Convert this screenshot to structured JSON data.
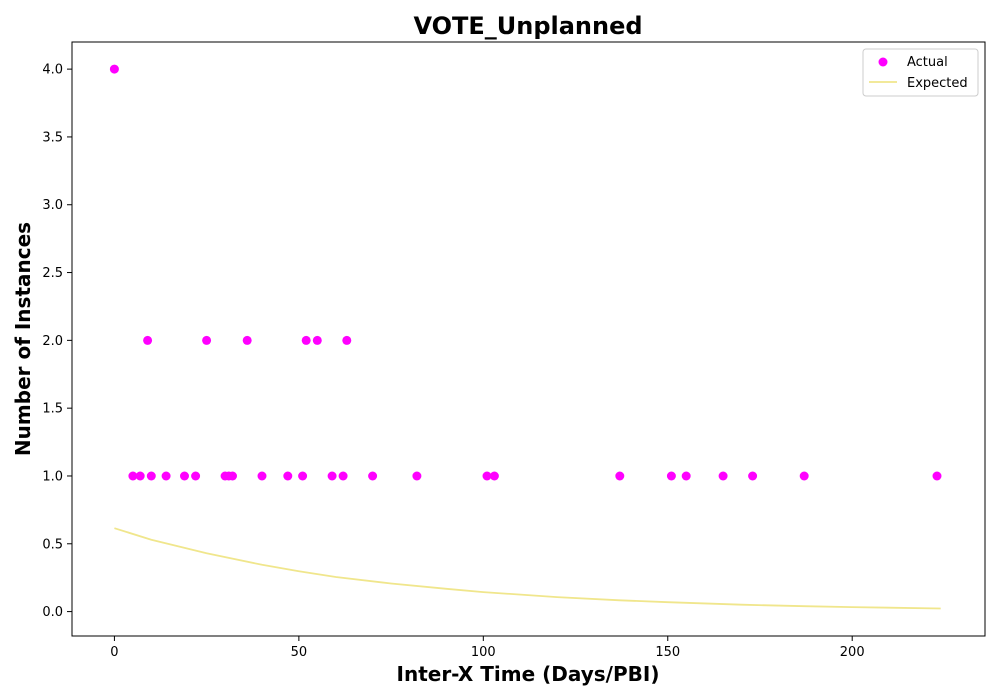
{
  "chart_data": {
    "type": "scatter",
    "title": "VOTE_Unplanned",
    "xlabel": "Inter-X Time (Days/PBI)",
    "ylabel": "Number of Instances",
    "xlim": [
      -11.5,
      236
    ],
    "ylim": [
      -0.18,
      4.2
    ],
    "xticks": [
      0,
      50,
      100,
      150,
      200
    ],
    "yticks": [
      0.0,
      0.5,
      1.0,
      1.5,
      2.0,
      2.5,
      3.0,
      3.5,
      4.0
    ],
    "grid": false,
    "legend_position": "top-right",
    "series": [
      {
        "name": "Actual",
        "kind": "scatter",
        "color": "#ff00ff",
        "points": [
          [
            0,
            4
          ],
          [
            5,
            1
          ],
          [
            7,
            1
          ],
          [
            9,
            2
          ],
          [
            10,
            1
          ],
          [
            14,
            1
          ],
          [
            19,
            1
          ],
          [
            22,
            1
          ],
          [
            25,
            2
          ],
          [
            30,
            1
          ],
          [
            31,
            1
          ],
          [
            32,
            1
          ],
          [
            36,
            2
          ],
          [
            40,
            1
          ],
          [
            47,
            1
          ],
          [
            51,
            1
          ],
          [
            52,
            2
          ],
          [
            55,
            2
          ],
          [
            59,
            1
          ],
          [
            62,
            1
          ],
          [
            63,
            2
          ],
          [
            70,
            1
          ],
          [
            82,
            1
          ],
          [
            101,
            1
          ],
          [
            103,
            1
          ],
          [
            137,
            1
          ],
          [
            151,
            1
          ],
          [
            155,
            1
          ],
          [
            165,
            1
          ],
          [
            173,
            1
          ],
          [
            187,
            1
          ],
          [
            223,
            1
          ]
        ]
      },
      {
        "name": "Expected",
        "kind": "line",
        "color": "#f0e68c",
        "points": [
          [
            0,
            0.615
          ],
          [
            10,
            0.53
          ],
          [
            25,
            0.43
          ],
          [
            40,
            0.345
          ],
          [
            50,
            0.297
          ],
          [
            60,
            0.255
          ],
          [
            75,
            0.207
          ],
          [
            90,
            0.168
          ],
          [
            100,
            0.144
          ],
          [
            120,
            0.107
          ],
          [
            137,
            0.083
          ],
          [
            150,
            0.069
          ],
          [
            170,
            0.051
          ],
          [
            187,
            0.04
          ],
          [
            200,
            0.033
          ],
          [
            224,
            0.023
          ]
        ]
      }
    ]
  }
}
